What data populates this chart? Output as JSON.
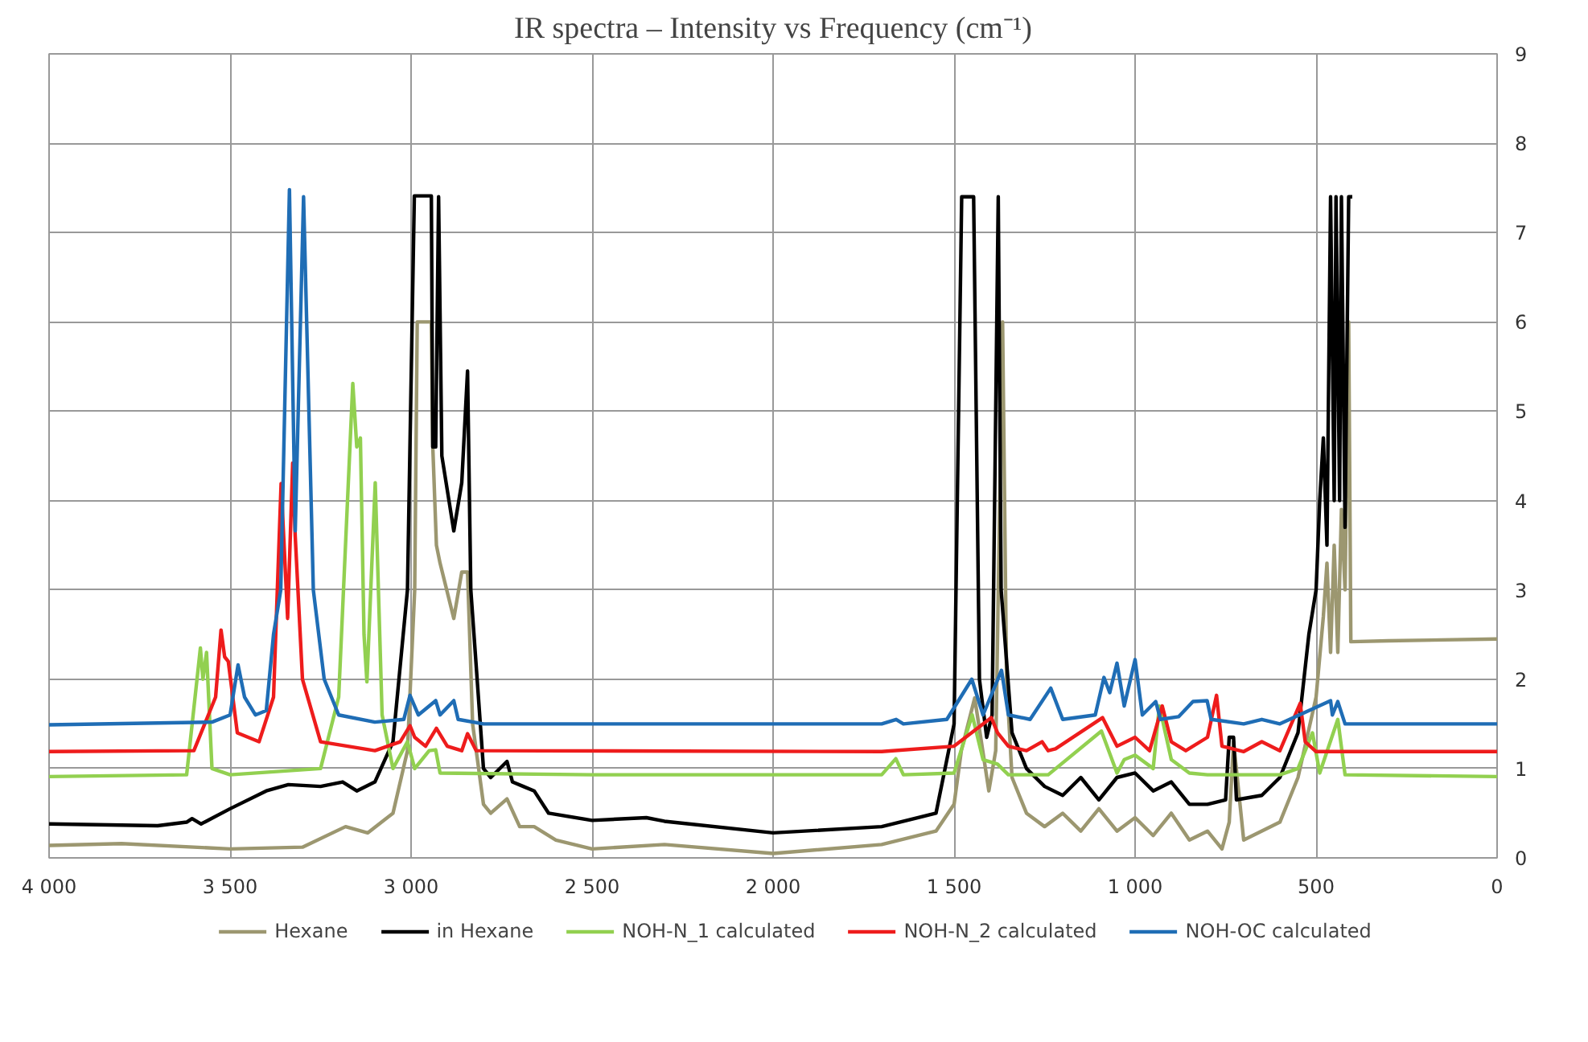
{
  "chart_data": {
    "type": "line",
    "title": "IR spectra – Intensity vs Frequency (cm⁻¹)",
    "xlim": [
      4000,
      0
    ],
    "ylim": [
      0,
      9
    ],
    "xticks": [
      {
        "value": 4000,
        "label": "4 000"
      },
      {
        "value": 3500,
        "label": "3 500"
      },
      {
        "value": 3000,
        "label": "3 000"
      },
      {
        "value": 2500,
        "label": "2 500"
      },
      {
        "value": 2000,
        "label": "2 000"
      },
      {
        "value": 1500,
        "label": "1 500"
      },
      {
        "value": 1000,
        "label": "1 000"
      },
      500,
      0
    ],
    "yticks": [
      0,
      1,
      2,
      3,
      4,
      5,
      6,
      7,
      8,
      9
    ],
    "grid": true,
    "legend": "bottom",
    "marker": "none",
    "line_style": "solid",
    "series": [
      {
        "name": "Hexane",
        "color": "#9c9770",
        "x": [
          4000,
          3800,
          3500,
          3300,
          3181,
          3120,
          3050,
          3010,
          2990,
          2983,
          2944,
          2940,
          2930,
          2920,
          2882,
          2860,
          2844,
          2830,
          2800,
          2780,
          2735,
          2700,
          2660,
          2600,
          2500,
          2300,
          2000,
          1700,
          1550,
          1500,
          1480,
          1443,
          1404,
          1385,
          1366,
          1355,
          1340,
          1300,
          1250,
          1200,
          1150,
          1100,
          1050,
          1000,
          950,
          900,
          850,
          800,
          760,
          740,
          728,
          700,
          600,
          550,
          500,
          480,
          470,
          460,
          450,
          440,
          430,
          420,
          410,
          404,
          300,
          0
        ],
        "values": [
          0.14,
          0.16,
          0.1,
          0.12,
          0.35,
          0.28,
          0.5,
          1.2,
          3.0,
          6.0,
          6.0,
          4.6,
          3.5,
          3.3,
          2.68,
          3.2,
          3.2,
          1.5,
          0.6,
          0.5,
          0.66,
          0.35,
          0.35,
          0.2,
          0.1,
          0.15,
          0.05,
          0.15,
          0.3,
          0.6,
          1.2,
          1.79,
          0.75,
          1.2,
          6.0,
          2.0,
          0.9,
          0.5,
          0.35,
          0.5,
          0.3,
          0.55,
          0.3,
          0.45,
          0.25,
          0.5,
          0.2,
          0.3,
          0.1,
          0.4,
          1.3,
          0.2,
          0.4,
          0.9,
          1.8,
          2.7,
          3.3,
          2.3,
          3.5,
          2.3,
          3.9,
          3.0,
          6.0,
          2.42,
          2.43,
          2.45
        ]
      },
      {
        "name": "in Hexane",
        "color": "#000000",
        "x": [
          4000,
          3700,
          3620,
          3605,
          3580,
          3500,
          3400,
          3339,
          3250,
          3189,
          3150,
          3100,
          3050,
          3010,
          2991,
          2944,
          2940,
          2932,
          2924,
          2915,
          2882,
          2860,
          2844,
          2835,
          2800,
          2780,
          2735,
          2720,
          2690,
          2660,
          2620,
          2500,
          2350,
          2300,
          2000,
          1700,
          1550,
          1500,
          1479,
          1446,
          1430,
          1410,
          1395,
          1378,
          1370,
          1340,
          1300,
          1250,
          1200,
          1150,
          1100,
          1050,
          1000,
          950,
          900,
          850,
          800,
          750,
          740,
          728,
          720,
          650,
          600,
          550,
          520,
          500,
          490,
          480,
          470,
          460,
          450,
          445,
          435,
          430,
          420,
          410,
          400
        ],
        "values": [
          0.38,
          0.36,
          0.4,
          0.44,
          0.38,
          0.55,
          0.75,
          0.82,
          0.8,
          0.85,
          0.75,
          0.85,
          1.3,
          3.0,
          7.41,
          7.41,
          4.6,
          4.6,
          7.4,
          4.5,
          3.66,
          4.2,
          5.45,
          3.0,
          1.0,
          0.9,
          1.08,
          0.85,
          0.8,
          0.75,
          0.5,
          0.42,
          0.45,
          0.41,
          0.28,
          0.35,
          0.5,
          1.5,
          7.4,
          7.4,
          2.0,
          1.35,
          1.6,
          7.4,
          3.0,
          1.4,
          1.0,
          0.8,
          0.7,
          0.9,
          0.65,
          0.9,
          0.95,
          0.75,
          0.85,
          0.6,
          0.6,
          0.65,
          1.35,
          1.35,
          0.65,
          0.7,
          0.9,
          1.4,
          2.5,
          3.0,
          4.0,
          4.7,
          3.5,
          7.4,
          4.0,
          7.4,
          4.0,
          7.4,
          3.7,
          7.4,
          7.4
        ]
      },
      {
        "name": "NOH-N_1 calculated",
        "color": "#92d050",
        "x": [
          4000,
          3620,
          3582,
          3575,
          3565,
          3550,
          3500,
          3250,
          3200,
          3161,
          3150,
          3140,
          3130,
          3122,
          3099,
          3080,
          3050,
          3010,
          2990,
          2950,
          2932,
          2920,
          2500,
          1700,
          1661,
          1640,
          1500,
          1450,
          1420,
          1380,
          1350,
          1240,
          1093,
          1050,
          1030,
          1000,
          950,
          933,
          900,
          850,
          800,
          600,
          550,
          510,
          490,
          440,
          420,
          0
        ],
        "values": [
          0.91,
          0.93,
          2.35,
          2.0,
          2.3,
          1.0,
          0.93,
          1.0,
          1.8,
          5.31,
          4.6,
          4.7,
          2.5,
          1.97,
          4.2,
          1.6,
          1.0,
          1.3,
          1.0,
          1.2,
          1.21,
          0.95,
          0.93,
          0.93,
          1.11,
          0.93,
          0.95,
          1.6,
          1.1,
          1.05,
          0.93,
          0.93,
          1.42,
          0.95,
          1.1,
          1.15,
          1.0,
          1.7,
          1.1,
          0.95,
          0.93,
          0.93,
          1.0,
          1.4,
          0.95,
          1.55,
          0.93,
          0.91
        ]
      },
      {
        "name": "NOH-N_2 calculated",
        "color": "#ee1c1c",
        "x": [
          4000,
          3600,
          3540,
          3525,
          3515,
          3505,
          3480,
          3420,
          3380,
          3359,
          3341,
          3327,
          3320,
          3300,
          3250,
          3100,
          3030,
          3003,
          2990,
          2960,
          2930,
          2900,
          2860,
          2844,
          2820,
          1700,
          1500,
          1397,
          1380,
          1350,
          1300,
          1257,
          1240,
          1220,
          1090,
          1050,
          1000,
          960,
          925,
          900,
          860,
          800,
          775,
          760,
          700,
          650,
          600,
          544,
          530,
          500,
          0
        ],
        "values": [
          1.19,
          1.2,
          1.8,
          2.55,
          2.25,
          2.2,
          1.4,
          1.3,
          1.8,
          4.19,
          2.68,
          4.42,
          3.6,
          2.0,
          1.3,
          1.2,
          1.3,
          1.48,
          1.35,
          1.25,
          1.45,
          1.25,
          1.2,
          1.39,
          1.2,
          1.19,
          1.25,
          1.57,
          1.4,
          1.25,
          1.2,
          1.3,
          1.2,
          1.22,
          1.57,
          1.25,
          1.35,
          1.2,
          1.7,
          1.3,
          1.2,
          1.35,
          1.82,
          1.25,
          1.19,
          1.3,
          1.2,
          1.73,
          1.3,
          1.19,
          1.19
        ]
      },
      {
        "name": "NOH-OC calculated",
        "color": "#1f6db5",
        "x": [
          4000,
          3550,
          3500,
          3478,
          3460,
          3430,
          3400,
          3380,
          3360,
          3336,
          3320,
          3297,
          3270,
          3240,
          3200,
          3100,
          3020,
          3003,
          2980,
          2932,
          2920,
          2882,
          2870,
          2800,
          1700,
          1660,
          1640,
          1520,
          1451,
          1420,
          1369,
          1350,
          1290,
          1233,
          1200,
          1110,
          1086,
          1070,
          1050,
          1030,
          1000,
          980,
          943,
          930,
          880,
          840,
          801,
          790,
          700,
          650,
          600,
          460,
          455,
          440,
          420,
          0
        ],
        "values": [
          1.49,
          1.52,
          1.6,
          2.16,
          1.8,
          1.6,
          1.65,
          2.5,
          3.0,
          7.48,
          3.66,
          7.4,
          3.0,
          2.0,
          1.6,
          1.52,
          1.55,
          1.82,
          1.6,
          1.76,
          1.6,
          1.76,
          1.55,
          1.5,
          1.5,
          1.55,
          1.5,
          1.55,
          2.0,
          1.6,
          2.1,
          1.6,
          1.55,
          1.9,
          1.55,
          1.6,
          2.02,
          1.85,
          2.18,
          1.7,
          2.22,
          1.6,
          1.75,
          1.55,
          1.58,
          1.75,
          1.76,
          1.55,
          1.5,
          1.55,
          1.5,
          1.76,
          1.6,
          1.75,
          1.5,
          1.5
        ]
      }
    ]
  }
}
